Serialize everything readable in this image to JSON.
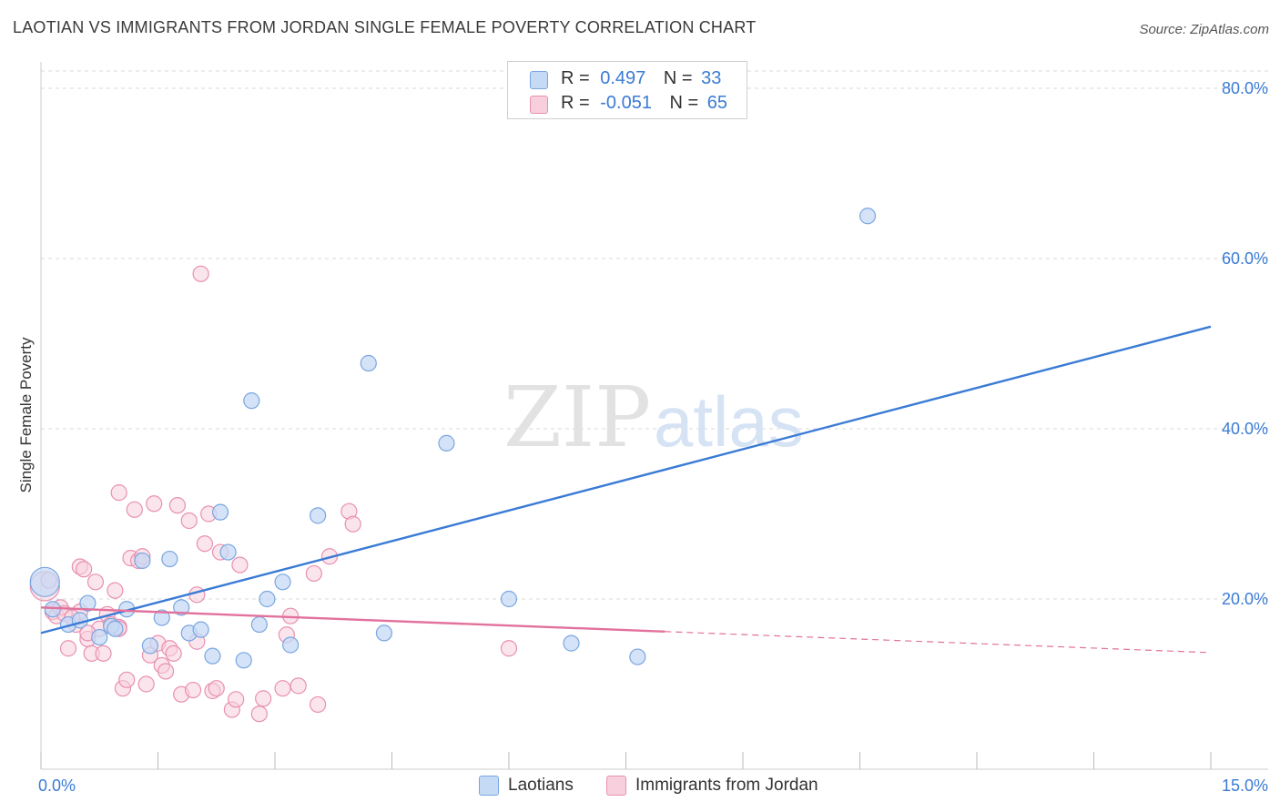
{
  "title": "LAOTIAN VS IMMIGRANTS FROM JORDAN SINGLE FEMALE POVERTY CORRELATION CHART",
  "source": "Source: ZipAtlas.com",
  "watermark": {
    "zip": "ZIP",
    "atlas": "atlas"
  },
  "legend": {
    "rows": [
      {
        "r_label": "R =",
        "r_value": "0.497",
        "n_label": "N =",
        "n_value": "33"
      },
      {
        "r_label": "R =",
        "r_value": "-0.051",
        "n_label": "N =",
        "n_value": "65"
      }
    ]
  },
  "bottom_legend": {
    "series1": "Laotians",
    "series2": "Immigrants from Jordan"
  },
  "colors": {
    "blue_fill": "#c5daf5",
    "blue_stroke": "#7aa6e0",
    "blue_line": "#3a7bd5",
    "pink_fill": "#f8cfdd",
    "pink_stroke": "#e890b0",
    "pink_line": "#e2719c",
    "grid": "#d8d8d8",
    "axis_label": "#3a7bd5"
  },
  "chart_data": {
    "type": "scatter",
    "title": "LAOTIAN VS IMMIGRANTS FROM JORDAN SINGLE FEMALE POVERTY CORRELATION CHART",
    "xlabel": "",
    "ylabel": "Single Female Poverty",
    "xlim": [
      0,
      15
    ],
    "ylim": [
      0,
      80
    ],
    "x_ticks": [
      0,
      1.5,
      3,
      4.5,
      6,
      7.5,
      9,
      10.5,
      12,
      13.5,
      15
    ],
    "x_tick_labels": {
      "0": "0.0%",
      "15": "15.0%"
    },
    "y_ticks": [
      20,
      40,
      60,
      80
    ],
    "y_tick_labels": [
      "20.0%",
      "40.0%",
      "60.0%",
      "80.0%"
    ],
    "series": [
      {
        "name": "Laotians",
        "r": 0.497,
        "n": 33,
        "trend": {
          "x": [
            0,
            15
          ],
          "y": [
            16.0,
            52.0
          ],
          "solid_until": 15
        },
        "points": [
          {
            "x": 0.05,
            "y": 22.0,
            "big": true
          },
          {
            "x": 0.15,
            "y": 18.8
          },
          {
            "x": 0.35,
            "y": 17.0
          },
          {
            "x": 0.5,
            "y": 17.5
          },
          {
            "x": 0.6,
            "y": 19.5
          },
          {
            "x": 0.75,
            "y": 15.5
          },
          {
            "x": 0.9,
            "y": 16.8
          },
          {
            "x": 0.95,
            "y": 16.5
          },
          {
            "x": 1.1,
            "y": 18.8
          },
          {
            "x": 1.3,
            "y": 24.5
          },
          {
            "x": 1.4,
            "y": 14.5
          },
          {
            "x": 1.55,
            "y": 17.8
          },
          {
            "x": 1.65,
            "y": 24.7
          },
          {
            "x": 1.8,
            "y": 19.0
          },
          {
            "x": 1.9,
            "y": 16.0
          },
          {
            "x": 2.05,
            "y": 16.4
          },
          {
            "x": 2.2,
            "y": 13.3
          },
          {
            "x": 2.3,
            "y": 30.2
          },
          {
            "x": 2.4,
            "y": 25.5
          },
          {
            "x": 2.6,
            "y": 12.8
          },
          {
            "x": 2.7,
            "y": 43.3
          },
          {
            "x": 2.8,
            "y": 17.0
          },
          {
            "x": 2.9,
            "y": 20.0
          },
          {
            "x": 3.1,
            "y": 22.0
          },
          {
            "x": 3.2,
            "y": 14.6
          },
          {
            "x": 3.55,
            "y": 29.8
          },
          {
            "x": 4.2,
            "y": 47.7
          },
          {
            "x": 4.4,
            "y": 16.0
          },
          {
            "x": 5.2,
            "y": 38.3
          },
          {
            "x": 6.0,
            "y": 20.0
          },
          {
            "x": 6.8,
            "y": 14.8
          },
          {
            "x": 7.65,
            "y": 13.2
          },
          {
            "x": 10.6,
            "y": 65.0
          }
        ]
      },
      {
        "name": "Immigrants from Jordan",
        "r": -0.051,
        "n": 65,
        "trend": {
          "x": [
            0,
            15
          ],
          "y": [
            19.0,
            13.7
          ],
          "solid_until": 8.0
        },
        "points": [
          {
            "x": 0.05,
            "y": 21.5,
            "big": true
          },
          {
            "x": 0.1,
            "y": 22.2
          },
          {
            "x": 0.15,
            "y": 18.5
          },
          {
            "x": 0.2,
            "y": 18.0
          },
          {
            "x": 0.25,
            "y": 19.0
          },
          {
            "x": 0.3,
            "y": 18.3
          },
          {
            "x": 0.35,
            "y": 14.2
          },
          {
            "x": 0.45,
            "y": 17.0
          },
          {
            "x": 0.5,
            "y": 23.8
          },
          {
            "x": 0.5,
            "y": 18.5
          },
          {
            "x": 0.55,
            "y": 23.5
          },
          {
            "x": 0.6,
            "y": 15.3
          },
          {
            "x": 0.65,
            "y": 13.6
          },
          {
            "x": 0.7,
            "y": 22.0
          },
          {
            "x": 0.75,
            "y": 16.5
          },
          {
            "x": 0.8,
            "y": 13.6
          },
          {
            "x": 0.85,
            "y": 18.2
          },
          {
            "x": 0.9,
            "y": 17.0
          },
          {
            "x": 0.95,
            "y": 21.0
          },
          {
            "x": 1.0,
            "y": 32.5
          },
          {
            "x": 1.0,
            "y": 16.7
          },
          {
            "x": 1.05,
            "y": 9.5
          },
          {
            "x": 1.1,
            "y": 10.5
          },
          {
            "x": 1.15,
            "y": 24.8
          },
          {
            "x": 1.2,
            "y": 30.5
          },
          {
            "x": 1.25,
            "y": 24.5
          },
          {
            "x": 1.3,
            "y": 25.0
          },
          {
            "x": 1.35,
            "y": 10.0
          },
          {
            "x": 1.4,
            "y": 13.4
          },
          {
            "x": 1.45,
            "y": 31.2
          },
          {
            "x": 1.5,
            "y": 14.8
          },
          {
            "x": 1.55,
            "y": 12.2
          },
          {
            "x": 1.6,
            "y": 11.5
          },
          {
            "x": 1.65,
            "y": 14.2
          },
          {
            "x": 1.7,
            "y": 13.6
          },
          {
            "x": 1.75,
            "y": 31.0
          },
          {
            "x": 1.8,
            "y": 8.8
          },
          {
            "x": 1.9,
            "y": 29.2
          },
          {
            "x": 1.95,
            "y": 9.3
          },
          {
            "x": 2.0,
            "y": 20.5
          },
          {
            "x": 2.05,
            "y": 58.2
          },
          {
            "x": 2.1,
            "y": 26.5
          },
          {
            "x": 2.15,
            "y": 30.0
          },
          {
            "x": 2.2,
            "y": 9.2
          },
          {
            "x": 2.25,
            "y": 9.5
          },
          {
            "x": 2.3,
            "y": 25.5
          },
          {
            "x": 2.45,
            "y": 7.0
          },
          {
            "x": 2.5,
            "y": 8.2
          },
          {
            "x": 2.55,
            "y": 24.0
          },
          {
            "x": 2.8,
            "y": 6.5
          },
          {
            "x": 2.85,
            "y": 8.3
          },
          {
            "x": 3.1,
            "y": 9.5
          },
          {
            "x": 3.15,
            "y": 15.8
          },
          {
            "x": 3.2,
            "y": 18.0
          },
          {
            "x": 3.3,
            "y": 9.8
          },
          {
            "x": 3.5,
            "y": 23.0
          },
          {
            "x": 3.55,
            "y": 7.6
          },
          {
            "x": 3.7,
            "y": 25.0
          },
          {
            "x": 3.95,
            "y": 30.3
          },
          {
            "x": 4.0,
            "y": 28.8
          },
          {
            "x": 6.0,
            "y": 14.2
          },
          {
            "x": 0.4,
            "y": 17.8
          },
          {
            "x": 0.6,
            "y": 16.0
          },
          {
            "x": 1.0,
            "y": 16.5
          },
          {
            "x": 2.0,
            "y": 15.0
          }
        ]
      }
    ]
  }
}
